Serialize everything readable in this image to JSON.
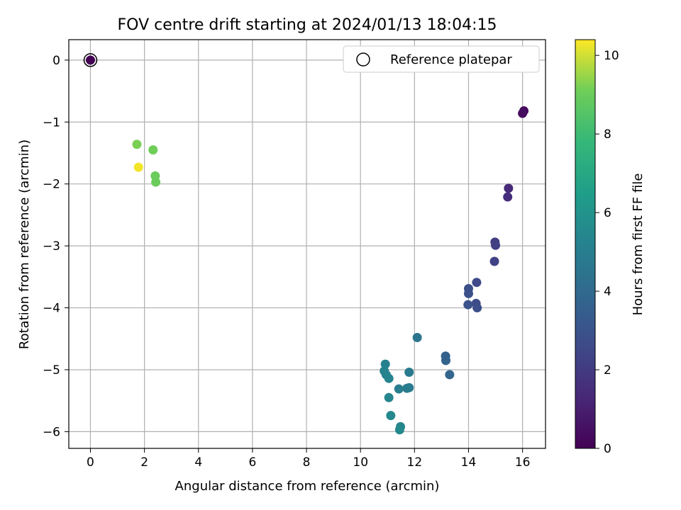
{
  "chart_data": {
    "type": "scatter",
    "title": "FOV centre drift starting at 2024/01/13 18:04:15",
    "xlabel": "Angular distance from reference (arcmin)",
    "ylabel": "Rotation from reference (arcmin)",
    "xlim": [
      -0.8,
      16.85
    ],
    "ylim": [
      -6.27,
      0.33
    ],
    "xticks": [
      0,
      2,
      4,
      6,
      8,
      10,
      12,
      14,
      16
    ],
    "yticks": [
      0,
      -1,
      -2,
      -3,
      -4,
      -5,
      -6
    ],
    "grid": true,
    "legend": {
      "position": "top-right",
      "label": "Reference platepar"
    },
    "colorbar": {
      "label": "Hours from first FF file",
      "range": [
        0,
        10.4
      ],
      "ticks": [
        0,
        2,
        4,
        6,
        8,
        10
      ],
      "colormap": "viridis"
    },
    "reference_point": {
      "x": 0,
      "y": 0,
      "hours": 0
    },
    "points": [
      {
        "x": 16.05,
        "y": -0.82,
        "hours": 0.3
      },
      {
        "x": 16.0,
        "y": -0.86,
        "hours": 0.4
      },
      {
        "x": 15.48,
        "y": -2.07,
        "hours": 1.4
      },
      {
        "x": 15.45,
        "y": -2.21,
        "hours": 1.5
      },
      {
        "x": 14.98,
        "y": -2.94,
        "hours": 2.1
      },
      {
        "x": 15.0,
        "y": -2.99,
        "hours": 2.2
      },
      {
        "x": 14.96,
        "y": -3.25,
        "hours": 2.3
      },
      {
        "x": 14.3,
        "y": -3.59,
        "hours": 2.6
      },
      {
        "x": 14.0,
        "y": -3.69,
        "hours": 2.8
      },
      {
        "x": 14.0,
        "y": -3.77,
        "hours": 2.9
      },
      {
        "x": 14.28,
        "y": -3.93,
        "hours": 2.7
      },
      {
        "x": 14.32,
        "y": -4.0,
        "hours": 2.8
      },
      {
        "x": 13.98,
        "y": -3.95,
        "hours": 3.0
      },
      {
        "x": 13.15,
        "y": -4.78,
        "hours": 3.6
      },
      {
        "x": 13.16,
        "y": -4.85,
        "hours": 3.7
      },
      {
        "x": 13.3,
        "y": -5.08,
        "hours": 3.8
      },
      {
        "x": 12.1,
        "y": -4.48,
        "hours": 4.5
      },
      {
        "x": 11.8,
        "y": -5.04,
        "hours": 4.8
      },
      {
        "x": 11.8,
        "y": -5.29,
        "hours": 4.8
      },
      {
        "x": 11.72,
        "y": -5.3,
        "hours": 4.9
      },
      {
        "x": 11.42,
        "y": -5.31,
        "hours": 5.0
      },
      {
        "x": 10.92,
        "y": -4.91,
        "hours": 5.1
      },
      {
        "x": 10.88,
        "y": -5.02,
        "hours": 5.2
      },
      {
        "x": 10.95,
        "y": -5.08,
        "hours": 5.2
      },
      {
        "x": 11.05,
        "y": -5.14,
        "hours": 5.3
      },
      {
        "x": 11.05,
        "y": -5.45,
        "hours": 5.4
      },
      {
        "x": 11.12,
        "y": -5.74,
        "hours": 5.5
      },
      {
        "x": 11.48,
        "y": -5.92,
        "hours": 5.4
      },
      {
        "x": 11.45,
        "y": -5.97,
        "hours": 5.5
      },
      {
        "x": 1.72,
        "y": -1.36,
        "hours": 9.2
      },
      {
        "x": 2.32,
        "y": -1.45,
        "hours": 9.1
      },
      {
        "x": 2.4,
        "y": -1.87,
        "hours": 9.0
      },
      {
        "x": 2.42,
        "y": -1.97,
        "hours": 9.0
      },
      {
        "x": 1.78,
        "y": -1.73,
        "hours": 10.3
      }
    ]
  }
}
